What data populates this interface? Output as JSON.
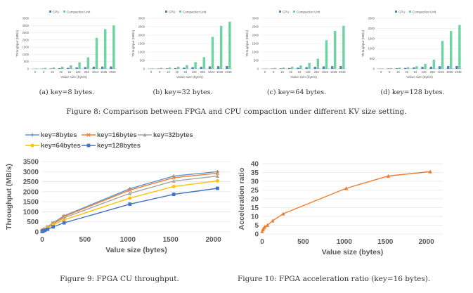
{
  "figure8": {
    "caption": "Figure 8: Comparison between FPGA and CPU compaction under different KV size setting.",
    "subfigures": [
      {
        "caption": "(a) key=8 bytes."
      },
      {
        "caption": "(b) key=32 bytes."
      },
      {
        "caption": "(c) key=64 bytes."
      },
      {
        "caption": "(d) key=128 bytes."
      }
    ]
  },
  "figure9": {
    "caption": "Figure 9: FPGA CU throughput."
  },
  "figure10": {
    "caption": "Figure 10: FPGA acceleration ratio (key=16 bytes)."
  },
  "colors": {
    "cpu": "#4f81bd",
    "cu": "#6dd3a0",
    "key8": "#5b9bd5",
    "key16": "#ed7d31",
    "key32": "#a5a5a5",
    "key64": "#ffc000",
    "key128": "#4472c4",
    "ratio": "#ed7d31",
    "grid": "#e6e6e6",
    "axis_text": "#595959"
  },
  "chart_data": [
    {
      "id": "fig8a",
      "type": "bar",
      "title": "",
      "legend": [
        "CPU",
        "Compaction Unit"
      ],
      "legend_position": "top",
      "xlabel": "Value size (bytes)",
      "ylabel": "Throughput (MB/s)",
      "categories": [
        "0",
        "8",
        "16",
        "32",
        "64",
        "128",
        "256",
        "1024",
        "1536",
        "2048"
      ],
      "ylim": [
        0,
        3500
      ],
      "yticks": [
        "0",
        "500",
        "1000",
        "1500",
        "2000",
        "2500",
        "3000",
        "3500"
      ],
      "grid": true,
      "series": [
        {
          "name": "CPU",
          "values": [
            10,
            20,
            30,
            45,
            70,
            100,
            120,
            150,
            160,
            165
          ]
        },
        {
          "name": "Compaction Unit",
          "values": [
            30,
            70,
            100,
            150,
            250,
            450,
            800,
            2150,
            2750,
            3000
          ]
        }
      ]
    },
    {
      "id": "fig8b",
      "type": "bar",
      "title": "",
      "legend": [
        "CPU",
        "Compaction Unit"
      ],
      "legend_position": "top",
      "xlabel": "Value size (bytes)",
      "ylabel": "Throughput (MB/s)",
      "categories": [
        "0",
        "8",
        "16",
        "32",
        "64",
        "128",
        "256",
        "1024",
        "1536",
        "2048"
      ],
      "ylim": [
        0,
        3000
      ],
      "yticks": [
        "0",
        "500",
        "1000",
        "1500",
        "2000",
        "2500",
        "3000"
      ],
      "grid": true,
      "series": [
        {
          "name": "CPU",
          "values": [
            10,
            20,
            30,
            45,
            70,
            100,
            120,
            150,
            160,
            165
          ]
        },
        {
          "name": "Compaction Unit",
          "values": [
            30,
            60,
            90,
            130,
            220,
            400,
            700,
            1900,
            2550,
            2800
          ]
        }
      ]
    },
    {
      "id": "fig8c",
      "type": "bar",
      "title": "",
      "legend": [
        "CPU",
        "Compaction Unit"
      ],
      "legend_position": "top",
      "xlabel": "Value size (bytes)",
      "ylabel": "Throughput (MB/s)",
      "categories": [
        "0",
        "8",
        "16",
        "32",
        "64",
        "128",
        "256",
        "1024",
        "1536",
        "2048"
      ],
      "ylim": [
        0,
        3000
      ],
      "yticks": [
        "0",
        "500",
        "1000",
        "1500",
        "2000",
        "2500",
        "3000"
      ],
      "grid": true,
      "series": [
        {
          "name": "CPU",
          "values": [
            10,
            20,
            30,
            45,
            70,
            100,
            120,
            150,
            160,
            165
          ]
        },
        {
          "name": "Compaction Unit",
          "values": [
            25,
            55,
            80,
            120,
            200,
            350,
            600,
            1700,
            2250,
            2550
          ]
        }
      ]
    },
    {
      "id": "fig8d",
      "type": "bar",
      "title": "",
      "legend": [
        "CPU",
        "Compaction Unit"
      ],
      "legend_position": "top",
      "xlabel": "Value size (bytes)",
      "ylabel": "Throughput (MB/s)",
      "categories": [
        "0",
        "8",
        "16",
        "32",
        "64",
        "128",
        "256",
        "1024",
        "1536",
        "2048"
      ],
      "ylim": [
        0,
        2500
      ],
      "yticks": [
        "0",
        "500",
        "1000",
        "1500",
        "2000",
        "2500"
      ],
      "grid": true,
      "series": [
        {
          "name": "CPU",
          "values": [
            10,
            20,
            30,
            45,
            70,
            100,
            110,
            130,
            140,
            145
          ]
        },
        {
          "name": "Compaction Unit",
          "values": [
            20,
            40,
            60,
            80,
            130,
            250,
            450,
            1380,
            1870,
            2170
          ]
        }
      ]
    },
    {
      "id": "fig9",
      "type": "line",
      "title": "",
      "legend_position": "top-left",
      "xlabel": "Value size (bytes)",
      "ylabel": "Throughput (MB/s)",
      "xlim": [
        0,
        2200
      ],
      "ylim": [
        0,
        3500
      ],
      "xticks": [
        "0",
        "500",
        "1000",
        "1500",
        "2000"
      ],
      "yticks": [
        "0",
        "500",
        "1000",
        "1500",
        "2000",
        "2500",
        "3000",
        "3500"
      ],
      "grid": true,
      "x": [
        0,
        8,
        16,
        32,
        64,
        128,
        256,
        1024,
        1536,
        2048
      ],
      "series": [
        {
          "name": "key=8bytes",
          "marker": "plus",
          "values": [
            30,
            70,
            100,
            150,
            250,
            450,
            800,
            2150,
            2780,
            3000
          ]
        },
        {
          "name": "key=16bytes",
          "marker": "x",
          "values": [
            30,
            65,
            95,
            140,
            240,
            430,
            770,
            2080,
            2700,
            2920
          ]
        },
        {
          "name": "key=32bytes",
          "marker": "triangle",
          "values": [
            30,
            60,
            90,
            130,
            220,
            400,
            700,
            1920,
            2530,
            2780
          ]
        },
        {
          "name": "key=64bytes",
          "marker": "circle",
          "values": [
            25,
            55,
            80,
            120,
            200,
            350,
            600,
            1680,
            2260,
            2540
          ]
        },
        {
          "name": "key=128bytes",
          "marker": "square",
          "values": [
            20,
            40,
            60,
            80,
            130,
            250,
            450,
            1380,
            1870,
            2170
          ]
        }
      ]
    },
    {
      "id": "fig10",
      "type": "line",
      "title": "",
      "xlabel": "Value size (bytes)",
      "ylabel": "Acceleration ratio",
      "xlim": [
        0,
        2200
      ],
      "ylim": [
        0,
        40
      ],
      "xticks": [
        "0",
        "500",
        "1000",
        "1500",
        "2000"
      ],
      "yticks": [
        "0",
        "5",
        "10",
        "15",
        "20",
        "25",
        "30",
        "35",
        "40"
      ],
      "grid": true,
      "x": [
        0,
        8,
        16,
        32,
        64,
        128,
        256,
        1024,
        1536,
        2048
      ],
      "series": [
        {
          "name": "Acceleration ratio",
          "marker": "triangle",
          "values": [
            1.5,
            2.5,
            3.2,
            4.0,
            5.0,
            7.5,
            11.5,
            26,
            33,
            35.5
          ]
        }
      ]
    }
  ]
}
